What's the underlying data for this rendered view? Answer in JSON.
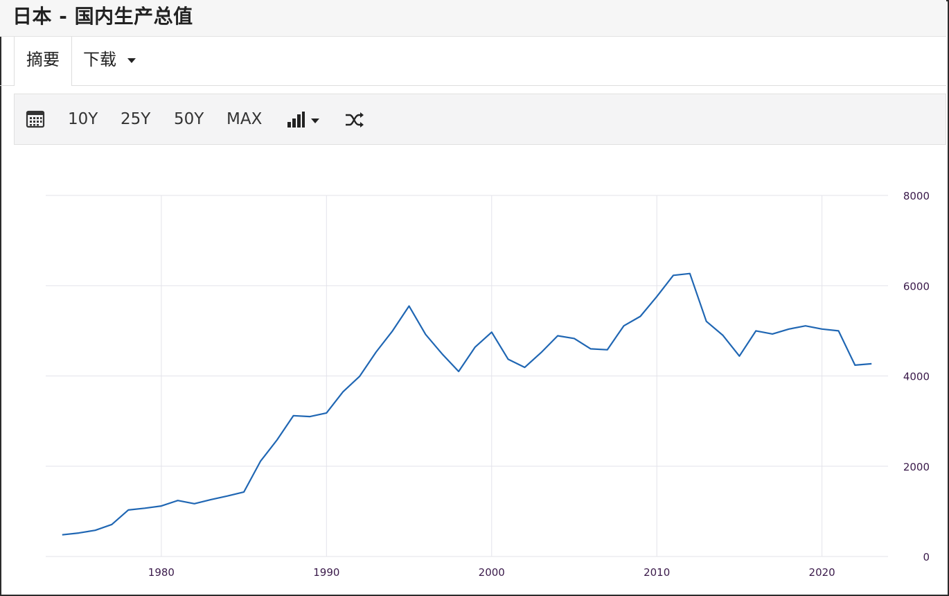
{
  "header": {
    "title": "日本 - 国内生产总值"
  },
  "tabs": [
    {
      "label": "摘要"
    },
    {
      "label": "下载"
    }
  ],
  "toolbar": {
    "calendar_icon": "calendar-icon",
    "ranges": [
      "10Y",
      "25Y",
      "50Y",
      "MAX"
    ],
    "chart_type_icon": "bar-chart-icon",
    "compare_icon": "shuffle-icon"
  },
  "colors": {
    "line": "#1f66b3",
    "grid": "#e3e3ea",
    "tick_text": "#3a1a4a"
  },
  "chart_data": {
    "type": "line",
    "title": "",
    "xlabel": "",
    "ylabel": "",
    "xlim": [
      1973,
      2024
    ],
    "ylim": [
      0,
      8000
    ],
    "x_ticks": [
      1980,
      1990,
      2000,
      2010,
      2020
    ],
    "y_ticks": [
      0,
      2000,
      4000,
      6000,
      8000
    ],
    "grid": true,
    "y_axis_side": "right",
    "series": [
      {
        "x": [
          1974,
          1975,
          1976,
          1977,
          1978,
          1979,
          1980,
          1981,
          1982,
          1983,
          1984,
          1985,
          1986,
          1987,
          1988,
          1989,
          1990,
          1991,
          1992,
          1993,
          1994,
          1995,
          1996,
          1997,
          1998,
          1999,
          2000,
          2001,
          2002,
          2003,
          2004,
          2005,
          2006,
          2007,
          2008,
          2009,
          2010,
          2011,
          2012,
          2013,
          2014,
          2015,
          2016,
          2017,
          2018,
          2019,
          2020,
          2021,
          2022,
          2023
        ],
        "values": [
          480,
          520,
          580,
          710,
          1030,
          1070,
          1120,
          1240,
          1170,
          1260,
          1340,
          1430,
          2110,
          2580,
          3120,
          3100,
          3180,
          3650,
          3990,
          4530,
          5000,
          5550,
          4920,
          4490,
          4100,
          4640,
          4970,
          4370,
          4190,
          4520,
          4890,
          4830,
          4600,
          4580,
          5110,
          5320,
          5760,
          6230,
          6270,
          5210,
          4900,
          4440,
          5000,
          4930,
          5040,
          5110,
          5040,
          5000,
          4240,
          4270
        ]
      }
    ]
  }
}
